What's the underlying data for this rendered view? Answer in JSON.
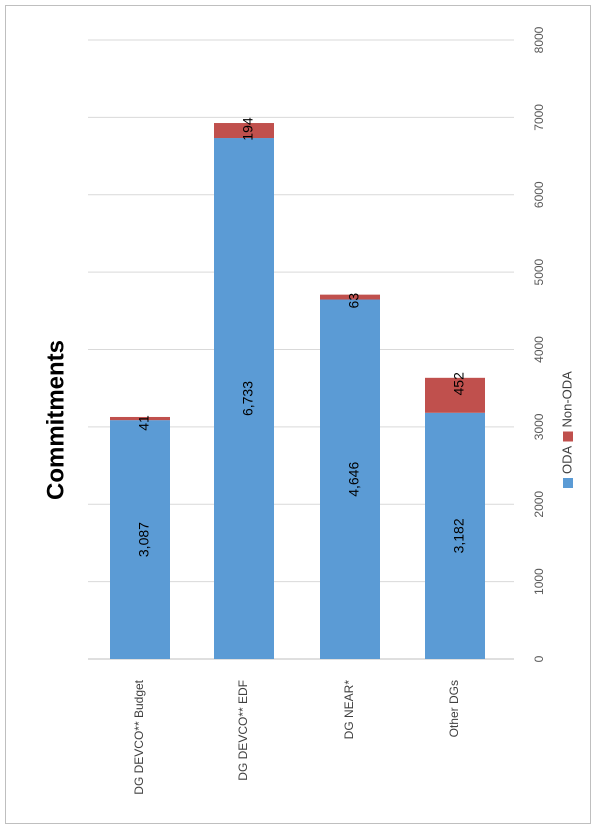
{
  "chart_data": {
    "type": "bar",
    "stacked": true,
    "orientation": "vertical",
    "title": "Commitments",
    "xlabel": "",
    "ylabel": "",
    "categories": [
      "DG DEVCO** Budget",
      "DG DEVCO** EDF",
      "DG NEAR*",
      "Other DGs"
    ],
    "series": [
      {
        "name": "ODA",
        "values": [
          3087,
          6733,
          4646,
          3182
        ],
        "labels": [
          "3,087",
          "6,733",
          "4,646",
          "3,182"
        ],
        "color": "#5b9bd5"
      },
      {
        "name": "Non-ODA",
        "values": [
          41,
          194,
          63,
          452
        ],
        "labels": [
          "41",
          "194",
          "63",
          "452"
        ],
        "color": "#c0504d"
      }
    ],
    "ylim": [
      0,
      8000
    ],
    "yticks": [
      0,
      1000,
      2000,
      3000,
      4000,
      5000,
      6000,
      7000,
      8000
    ],
    "ytick_labels": [
      "0",
      "1000",
      "2000",
      "3000",
      "4000",
      "5000",
      "6000",
      "7000",
      "8000"
    ],
    "grid": true,
    "legend_position": "right"
  }
}
